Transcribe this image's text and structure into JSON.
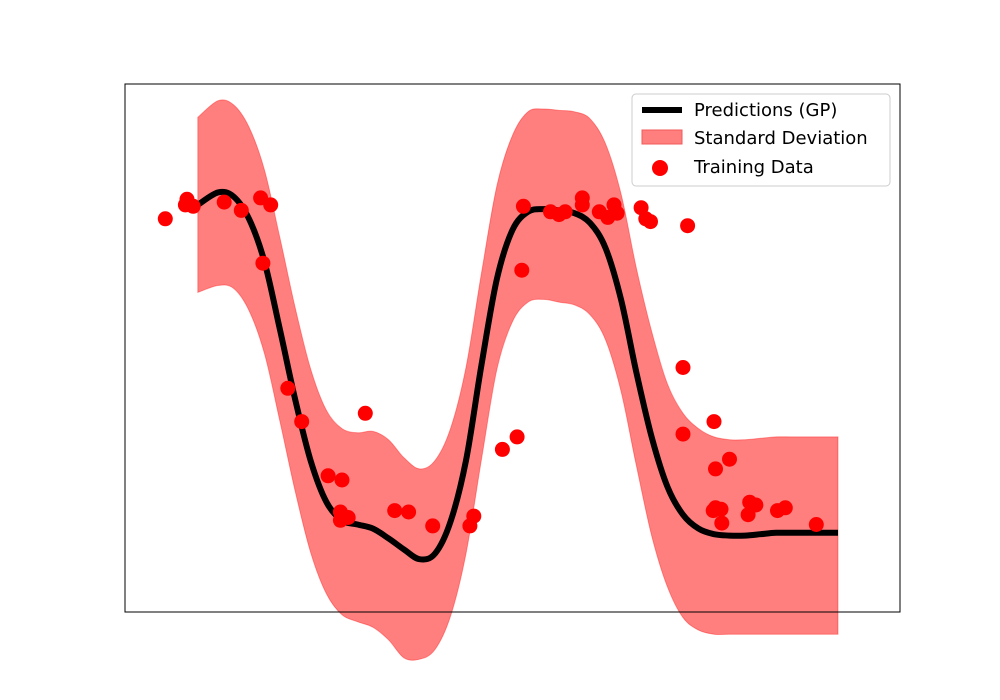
{
  "chart_data": {
    "type": "line",
    "title": "",
    "xlabel": "",
    "ylabel": "",
    "xlim": [
      0,
      10
    ],
    "ylim": [
      -1.9,
      1.9
    ],
    "grid": false,
    "axis_ticks_visible": false,
    "legend": {
      "placement": "top-right",
      "entries": [
        {
          "label": "Predictions (GP)",
          "kind": "line",
          "color": "#000000"
        },
        {
          "label": "Standard Deviation",
          "kind": "patch",
          "color": "#ff7f7f"
        },
        {
          "label": "Training Data",
          "kind": "marker",
          "color": "#ff0000"
        }
      ]
    },
    "colors": {
      "prediction": "#000000",
      "band_fill": "#ff0000",
      "band_opacity": 0.5,
      "points": "#ff0000"
    },
    "series": [
      {
        "name": "Predictions (GP)",
        "type": "line",
        "x": [
          0.94,
          1.2,
          1.4,
          1.6,
          1.8,
          2.0,
          2.2,
          2.4,
          2.6,
          2.8,
          3.0,
          3.2,
          3.4,
          3.6,
          3.8,
          4.0,
          4.2,
          4.4,
          4.6,
          4.8,
          5.0,
          5.2,
          5.4,
          5.6,
          5.8,
          6.0,
          6.2,
          6.4,
          6.6,
          6.8,
          7.0,
          7.2,
          7.4,
          7.6,
          7.8,
          8.0,
          8.2,
          8.4,
          8.6,
          8.8,
          9.0,
          9.2
        ],
        "y": [
          1.03,
          1.12,
          1.09,
          0.93,
          0.62,
          0.13,
          -0.38,
          -0.82,
          -1.11,
          -1.24,
          -1.27,
          -1.3,
          -1.37,
          -1.45,
          -1.52,
          -1.48,
          -1.25,
          -0.81,
          -0.12,
          0.5,
          0.85,
          0.98,
          1.0,
          0.99,
          0.97,
          0.9,
          0.72,
          0.35,
          -0.18,
          -0.65,
          -1.0,
          -1.2,
          -1.3,
          -1.34,
          -1.35,
          -1.35,
          -1.34,
          -1.33,
          -1.33,
          -1.33,
          -1.33,
          -1.33
        ]
      },
      {
        "name": "Standard Deviation",
        "type": "band",
        "x": [
          0.94,
          1.2,
          1.4,
          1.6,
          1.8,
          2.0,
          2.2,
          2.4,
          2.6,
          2.8,
          3.0,
          3.2,
          3.4,
          3.6,
          3.8,
          4.0,
          4.2,
          4.4,
          4.6,
          4.8,
          5.0,
          5.2,
          5.4,
          5.6,
          5.8,
          6.0,
          6.2,
          6.4,
          6.6,
          6.8,
          7.0,
          7.2,
          7.4,
          7.6,
          7.8,
          8.0,
          8.2,
          8.4,
          8.6,
          8.8,
          9.0,
          9.2
        ],
        "upper": [
          1.66,
          1.78,
          1.75,
          1.59,
          1.28,
          0.79,
          0.28,
          -0.16,
          -0.45,
          -0.58,
          -0.61,
          -0.6,
          -0.66,
          -0.79,
          -0.87,
          -0.81,
          -0.58,
          -0.14,
          0.54,
          1.17,
          1.53,
          1.7,
          1.72,
          1.71,
          1.7,
          1.65,
          1.47,
          1.11,
          0.57,
          0.11,
          -0.26,
          -0.47,
          -0.58,
          -0.64,
          -0.66,
          -0.66,
          -0.65,
          -0.64,
          -0.64,
          -0.64,
          -0.64,
          -0.64
        ],
        "lower": [
          0.4,
          0.45,
          0.43,
          0.27,
          -0.04,
          -0.53,
          -1.04,
          -1.48,
          -1.77,
          -1.92,
          -1.97,
          -2.01,
          -2.1,
          -2.23,
          -2.24,
          -2.17,
          -1.93,
          -1.48,
          -0.8,
          -0.15,
          0.19,
          0.33,
          0.35,
          0.33,
          0.31,
          0.24,
          0.06,
          -0.31,
          -0.85,
          -1.36,
          -1.72,
          -1.94,
          -2.03,
          -2.06,
          -2.06,
          -2.06,
          -2.06,
          -2.06,
          -2.06,
          -2.06,
          -2.06,
          -2.06
        ]
      },
      {
        "name": "Training Data",
        "type": "scatter",
        "points": [
          [
            0.52,
            0.93
          ],
          [
            0.78,
            1.03
          ],
          [
            0.8,
            1.07
          ],
          [
            0.88,
            1.02
          ],
          [
            1.28,
            1.05
          ],
          [
            1.5,
            0.99
          ],
          [
            1.75,
            1.08
          ],
          [
            1.78,
            0.61
          ],
          [
            1.88,
            1.03
          ],
          [
            2.1,
            -0.29
          ],
          [
            2.28,
            -0.53
          ],
          [
            2.62,
            -0.92
          ],
          [
            2.8,
            -0.95
          ],
          [
            2.78,
            -1.18
          ],
          [
            2.78,
            -1.24
          ],
          [
            2.88,
            -1.22
          ],
          [
            3.1,
            -0.47
          ],
          [
            3.48,
            -1.17
          ],
          [
            3.66,
            -1.18
          ],
          [
            3.97,
            -1.28
          ],
          [
            4.45,
            -1.28
          ],
          [
            4.5,
            -1.21
          ],
          [
            4.87,
            -0.73
          ],
          [
            5.06,
            -0.64
          ],
          [
            5.12,
            0.56
          ],
          [
            5.14,
            1.02
          ],
          [
            5.49,
            0.98
          ],
          [
            5.6,
            0.96
          ],
          [
            5.68,
            0.98
          ],
          [
            5.9,
            1.08
          ],
          [
            5.9,
            1.03
          ],
          [
            6.12,
            0.98
          ],
          [
            6.23,
            0.94
          ],
          [
            6.31,
            1.03
          ],
          [
            6.35,
            0.97
          ],
          [
            6.66,
            1.01
          ],
          [
            6.72,
            0.93
          ],
          [
            6.78,
            0.91
          ],
          [
            7.2,
            -0.14
          ],
          [
            7.2,
            -0.62
          ],
          [
            7.26,
            0.88
          ],
          [
            7.6,
            -0.53
          ],
          [
            7.62,
            -0.87
          ],
          [
            7.59,
            -1.17
          ],
          [
            7.62,
            -1.15
          ],
          [
            7.7,
            -1.26
          ],
          [
            7.69,
            -1.16
          ],
          [
            7.8,
            -0.8
          ],
          [
            8.04,
            -1.2
          ],
          [
            8.06,
            -1.11
          ],
          [
            8.14,
            -1.13
          ],
          [
            8.42,
            -1.17
          ],
          [
            8.52,
            -1.15
          ],
          [
            8.92,
            -1.27
          ]
        ]
      }
    ]
  }
}
